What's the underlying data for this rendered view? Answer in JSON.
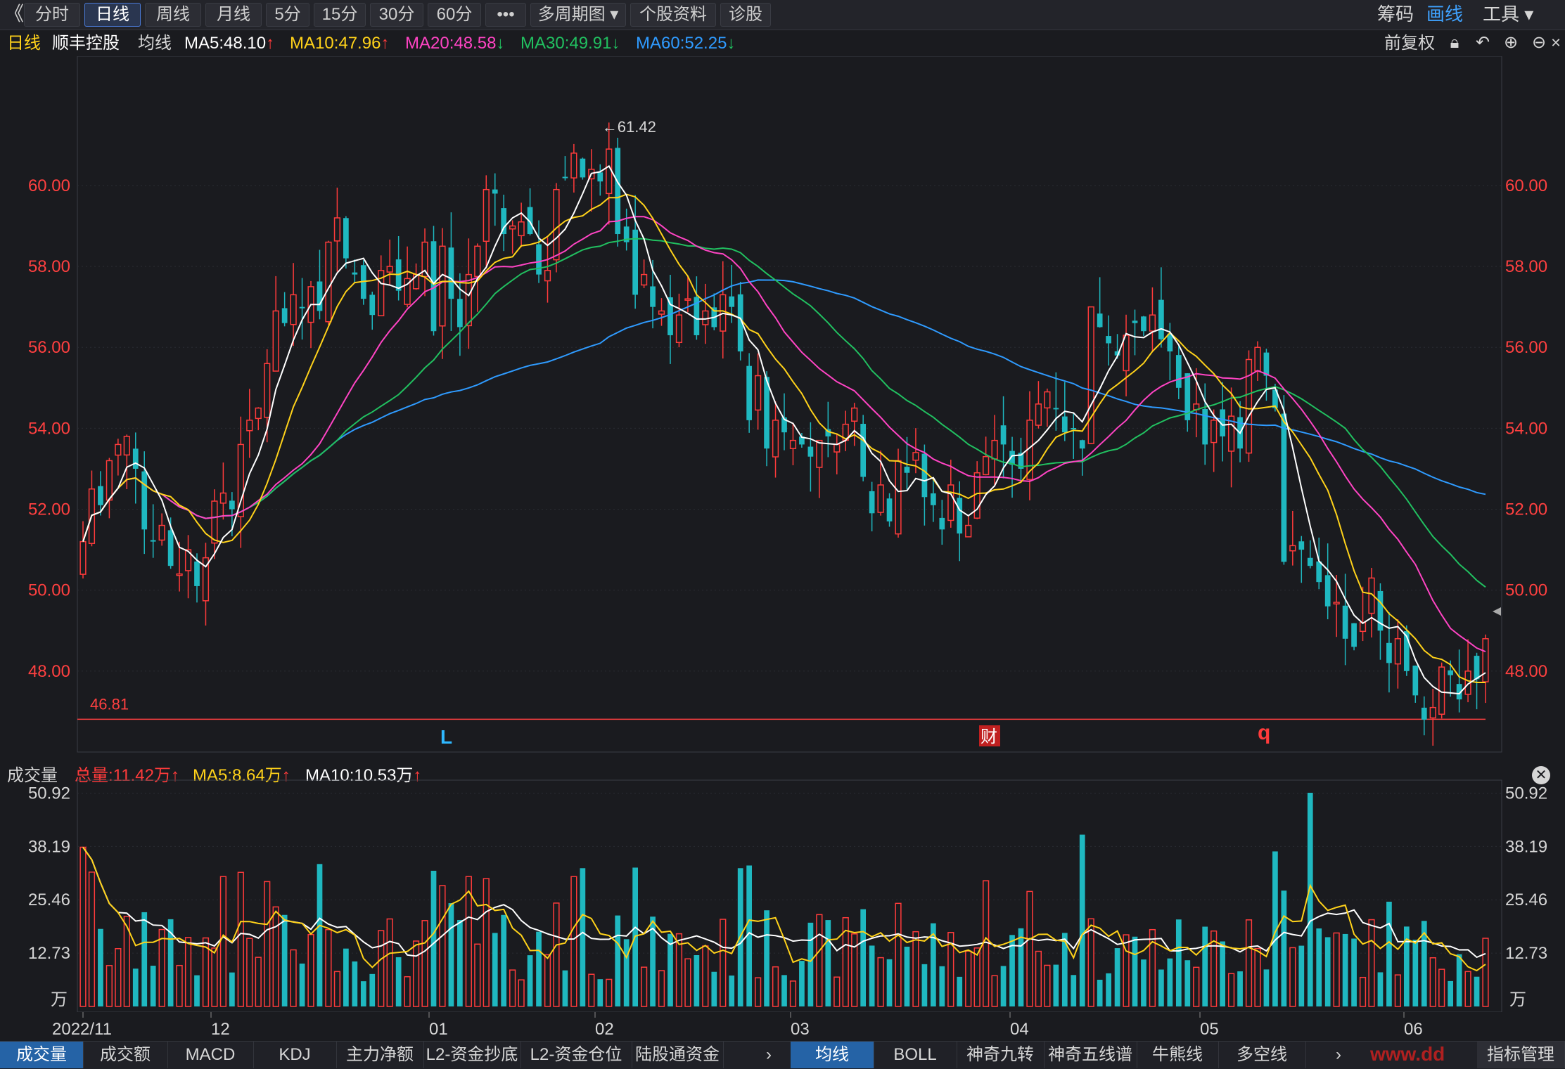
{
  "toolbar": {
    "back_glyph": "《",
    "buttons": [
      "分时",
      "日线",
      "周线",
      "月线",
      "5分",
      "15分",
      "30分",
      "60分",
      "•••",
      "多周期图 ▾",
      "个股资料",
      "诊股"
    ],
    "active_index": 1,
    "right": {
      "chips": "筹码",
      "draw": "画线",
      "tools": "工具 ▾"
    }
  },
  "header": {
    "period": "日线",
    "stock": "顺丰控股",
    "ma_label": "均线",
    "ma5": "MA5:48.10",
    "ma10": "MA10:47.96",
    "ma20": "MA20:48.58",
    "ma30": "MA30:49.91",
    "ma60": "MA60:52.25",
    "adjust": "前复权",
    "colors": {
      "ma5": "#ffffff",
      "ma10": "#ffd21a",
      "ma20": "#ff44c4",
      "ma30": "#21c060",
      "ma60": "#2f9bff"
    }
  },
  "price_axis": {
    "ticks": [
      "60.00",
      "58.00",
      "56.00",
      "54.00",
      "52.00",
      "50.00",
      "48.00"
    ],
    "high_label": "←61.42",
    "low_label": "46.45→",
    "support_label": "46.81",
    "markers": {
      "L": "L",
      "cai": "财",
      "q": "q"
    }
  },
  "volume_panel": {
    "title": "成交量",
    "total": "总量:11.42万",
    "ma5": "MA5:8.64万",
    "ma10": "MA10:10.53万",
    "ticks": [
      "50.92",
      "38.19",
      "25.46",
      "12.73"
    ],
    "unit": "万",
    "close_icon": "close-icon"
  },
  "date_axis": [
    "2022/11",
    "12",
    "01",
    "02",
    "03",
    "04",
    "05",
    "06"
  ],
  "bottom_tabs_left": [
    "成交量",
    "成交额",
    "MACD",
    "KDJ",
    "主力净额",
    "L2-资金抄底",
    "L2-资金仓位",
    "陆股通资金"
  ],
  "bottom_tabs_right": [
    "均线",
    "BOLL",
    "神奇九转",
    "神奇五线谱",
    "牛熊线",
    "多空线"
  ],
  "bottom_tabs_far_right": "指标管理",
  "watermark": "www.dd",
  "chart_data": {
    "type": "candlestick",
    "price_range": [
      46.0,
      62.5
    ],
    "support_line": 46.81,
    "high": 61.42,
    "low": 46.45,
    "ma_colors": {
      "ma5": "#ffffff",
      "ma10": "#ffd21a",
      "ma20": "#ff44c4",
      "ma30": "#21c060",
      "ma60": "#2f9bff"
    },
    "up_color": "#ff3b3b",
    "down_color": "#1fb8c0",
    "candle_series_note": "daily candles Nov 2022 – Jun 2023 (approximate)",
    "close": [
      51.2,
      52.5,
      52.1,
      53.2,
      53.6,
      53.8,
      53.0,
      51.5,
      51.2,
      51.6,
      50.6,
      50.4,
      51.0,
      50.1,
      50.8,
      52.2,
      52.4,
      52.0,
      53.6,
      54.2,
      54.5,
      55.6,
      56.9,
      56.6,
      57.3,
      57.0,
      57.5,
      56.9,
      58.6,
      59.2,
      58.2,
      57.8,
      57.2,
      56.8,
      57.9,
      58.0,
      57.4,
      57.7,
      57.8,
      58.6,
      56.4,
      58.5,
      57.2,
      56.5,
      57.8,
      58.5,
      59.9,
      59.8,
      58.8,
      59.0,
      59.1,
      58.8,
      57.8,
      57.9,
      59.9,
      60.2,
      60.8,
      60.2,
      60.4,
      60.1,
      60.9,
      58.8,
      58.6,
      57.3,
      57.8,
      57.0,
      56.9,
      56.3,
      56.8,
      57.2,
      56.3,
      56.9,
      56.5,
      57.3,
      57.0,
      55.9,
      54.2,
      55.3,
      53.5,
      54.2,
      53.9,
      53.7,
      53.6,
      53.3,
      53.7,
      53.8,
      53.6,
      54.1,
      54.5,
      52.8,
      51.9,
      52.6,
      51.7,
      53.2,
      52.9,
      53.4,
      52.3,
      52.1,
      51.5,
      52.6,
      51.4,
      51.6,
      52.9,
      53.3,
      53.7,
      53.6,
      53.1,
      53.0,
      54.2,
      54.6,
      54.9,
      54.5,
      53.9,
      54.0,
      53.5,
      57.0,
      56.5,
      56.1,
      55.8,
      56.3,
      56.6,
      56.4,
      56.8,
      56.2,
      55.9,
      55.0,
      54.2,
      54.6,
      53.6,
      54.2,
      53.8,
      54.3,
      53.5,
      55.7,
      56.0,
      55.3,
      54.5,
      50.7,
      51.1,
      51.0,
      50.6,
      50.2,
      49.6,
      49.7,
      48.8,
      48.6,
      49.2,
      50.3,
      49.0,
      48.2,
      48.8,
      48.0,
      47.4,
      46.8,
      47.1,
      48.1,
      47.9,
      47.3,
      48.0,
      47.8,
      48.8
    ]
  }
}
